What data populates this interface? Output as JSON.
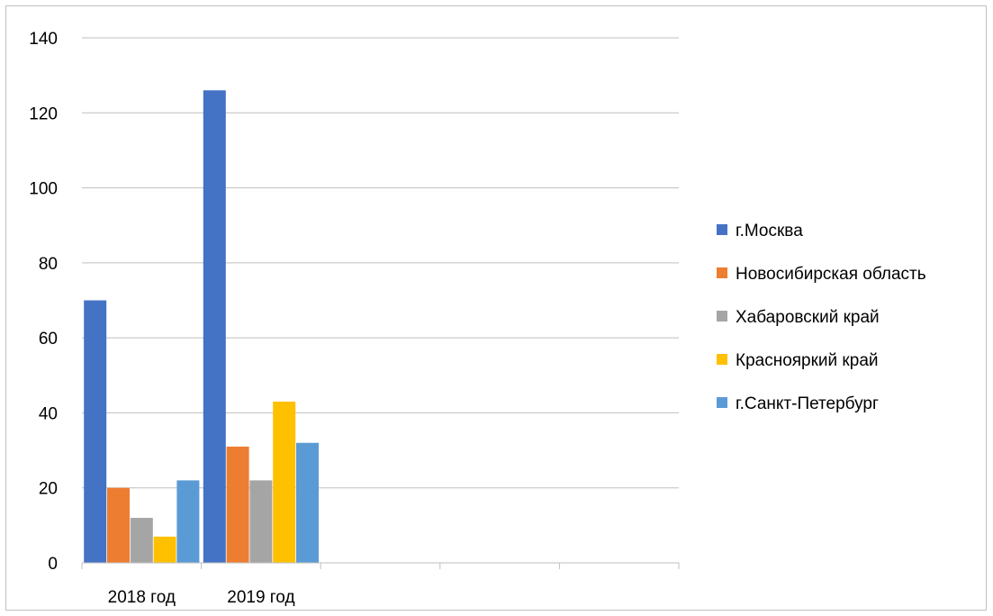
{
  "chart_data": {
    "type": "bar",
    "categories": [
      "2018 год",
      "2019 год",
      "",
      "",
      ""
    ],
    "series": [
      {
        "name": "г.Москва",
        "color": "#4472C4",
        "values": [
          70,
          126,
          null,
          null,
          null
        ]
      },
      {
        "name": "Новосибирская область",
        "color": "#ED7D31",
        "values": [
          20,
          31,
          null,
          null,
          null
        ]
      },
      {
        "name": "Хабаровский край",
        "color": "#A5A5A5",
        "values": [
          12,
          22,
          null,
          null,
          null
        ]
      },
      {
        "name": "Краснояркий край",
        "color": "#FFC000",
        "values": [
          7,
          43,
          null,
          null,
          null
        ]
      },
      {
        "name": "г.Санкт-Петербург",
        "color": "#5B9BD5",
        "values": [
          22,
          32,
          null,
          null,
          null
        ]
      }
    ],
    "y_ticks": [
      "0",
      "20",
      "40",
      "60",
      "80",
      "100",
      "120",
      "140"
    ],
    "ylim": [
      0,
      140
    ],
    "grid": true,
    "legend": "right"
  }
}
